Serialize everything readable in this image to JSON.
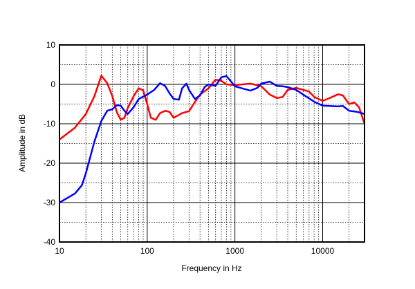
{
  "chart_data": {
    "type": "line",
    "title": "",
    "xlabel": "Frequency in Hz",
    "ylabel": "Amplitude in dB",
    "xscale": "log",
    "xlim": [
      10,
      30000
    ],
    "ylim": [
      -40,
      10
    ],
    "xticks": [
      10,
      100,
      1000,
      10000
    ],
    "xtick_labels": [
      "10",
      "100",
      "1000",
      "10000"
    ],
    "yticks": [
      10,
      0,
      -10,
      -20,
      -30,
      -40
    ],
    "ytick_labels": [
      "10",
      "0",
      "-10",
      "-20",
      "-30",
      "-40"
    ],
    "grid": true,
    "legend": "none",
    "series": [
      {
        "name": "red",
        "color": "#ff0000",
        "x": [
          10,
          15,
          20,
          25,
          30,
          35,
          40,
          45,
          50,
          55,
          60,
          70,
          80,
          90,
          100,
          110,
          125,
          140,
          160,
          180,
          200,
          250,
          300,
          350,
          400,
          500,
          600,
          700,
          800,
          1000,
          1500,
          2000,
          2500,
          3000,
          3500,
          4000,
          5000,
          6000,
          7000,
          8000,
          10000,
          12000,
          15000,
          17000,
          20000,
          23000,
          26000,
          30000
        ],
        "y": [
          -14,
          -11,
          -7.5,
          -3,
          2.2,
          0.3,
          -3,
          -7,
          -9,
          -8.5,
          -6,
          -3,
          -1,
          -1.5,
          -5,
          -8.5,
          -9,
          -7.3,
          -6.7,
          -7,
          -8.5,
          -7.3,
          -6.8,
          -4.5,
          -2.6,
          -1,
          1.2,
          0.9,
          0,
          -0.2,
          0.2,
          -0.5,
          -2.6,
          -3.5,
          -3.2,
          -1.4,
          -0.9,
          -1.4,
          -1.8,
          -3.2,
          -4.2,
          -3.5,
          -2.5,
          -2.8,
          -5,
          -4.6,
          -5.8,
          -10
        ]
      },
      {
        "name": "blue",
        "color": "#0000ff",
        "x": [
          10,
          15,
          18,
          20,
          25,
          30,
          35,
          40,
          45,
          50,
          55,
          60,
          70,
          80,
          100,
          120,
          140,
          160,
          180,
          200,
          230,
          250,
          280,
          300,
          350,
          400,
          450,
          500,
          600,
          700,
          800,
          1000,
          1200,
          1500,
          1800,
          2000,
          2500,
          3000,
          3500,
          4000,
          5000,
          6000,
          8000,
          10000,
          15000,
          17000,
          20000,
          25000,
          30000
        ],
        "y": [
          -30,
          -27.7,
          -25.6,
          -22.5,
          -14.5,
          -9.3,
          -6.7,
          -6.3,
          -5.3,
          -5.4,
          -6.7,
          -7.5,
          -5.8,
          -3.7,
          -2.6,
          -1.4,
          0.3,
          -0.4,
          -2.3,
          -3.7,
          -3.9,
          -1,
          0.2,
          -1.4,
          -3.7,
          -2.8,
          -0.7,
          0,
          -0.4,
          1.8,
          2.1,
          -0.5,
          -1,
          -1.6,
          -0.9,
          0.2,
          0.7,
          -0.4,
          -0.5,
          -0.7,
          -1.4,
          -2.6,
          -4.4,
          -5.4,
          -5.6,
          -5.5,
          -6.7,
          -7,
          -7.5
        ]
      }
    ]
  }
}
